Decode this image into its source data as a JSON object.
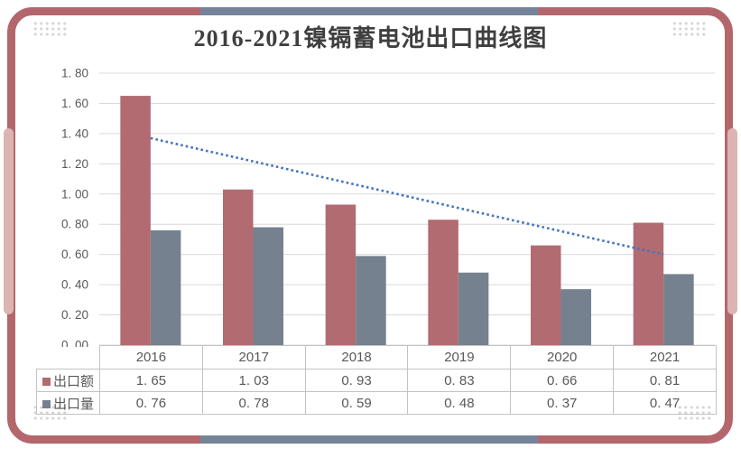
{
  "title": "2016-2021镍镉蓄电池出口曲线图",
  "colors": {
    "frame": "#b3676c",
    "accent_segment": "#76849a",
    "side_tab": "#dcb4b1",
    "bar_export_value": "#b26b70",
    "bar_export_volume": "#75818f",
    "trendline": "#4674c1",
    "gridline": "#d9d9d9",
    "table_border": "#c3c3c3",
    "axis_text": "#595959",
    "title_text": "#3f3f3f"
  },
  "chart_data": {
    "type": "bar",
    "title": "2016-2021镍镉蓄电池出口曲线图",
    "categories": [
      "2016",
      "2017",
      "2018",
      "2019",
      "2020",
      "2021"
    ],
    "series": [
      {
        "name": "出口额",
        "values": [
          1.65,
          1.03,
          0.93,
          0.83,
          0.66,
          0.81
        ],
        "color": "#b26b70"
      },
      {
        "name": "出口量",
        "values": [
          0.76,
          0.78,
          0.59,
          0.48,
          0.37,
          0.47
        ],
        "color": "#75818f"
      }
    ],
    "trendline": {
      "of_series": "出口额",
      "style": "dotted",
      "start": 1.37,
      "end": 0.6,
      "color": "#4674c1"
    },
    "xlabel": "",
    "ylabel": "",
    "ylim": [
      0,
      1.8
    ],
    "ytick_step": 0.2,
    "ytick_labels": [
      "0. 00",
      "0. 20",
      "0. 40",
      "0. 60",
      "0. 80",
      "1. 00",
      "1. 20",
      "1. 40",
      "1. 60",
      "1. 80"
    ],
    "grid": true,
    "legend_position": "table-left"
  },
  "table": {
    "header": [
      "2016",
      "2017",
      "2018",
      "2019",
      "2020",
      "2021"
    ],
    "rows": [
      {
        "label": "出口额",
        "marker_color": "#b26b70",
        "values": [
          "1. 65",
          "1. 03",
          "0. 93",
          "0. 83",
          "0. 66",
          "0. 81"
        ]
      },
      {
        "label": "出口量",
        "marker_color": "#75818f",
        "values": [
          "0. 76",
          "0. 78",
          "0. 59",
          "0. 48",
          "0. 37",
          "0. 47"
        ]
      }
    ]
  }
}
